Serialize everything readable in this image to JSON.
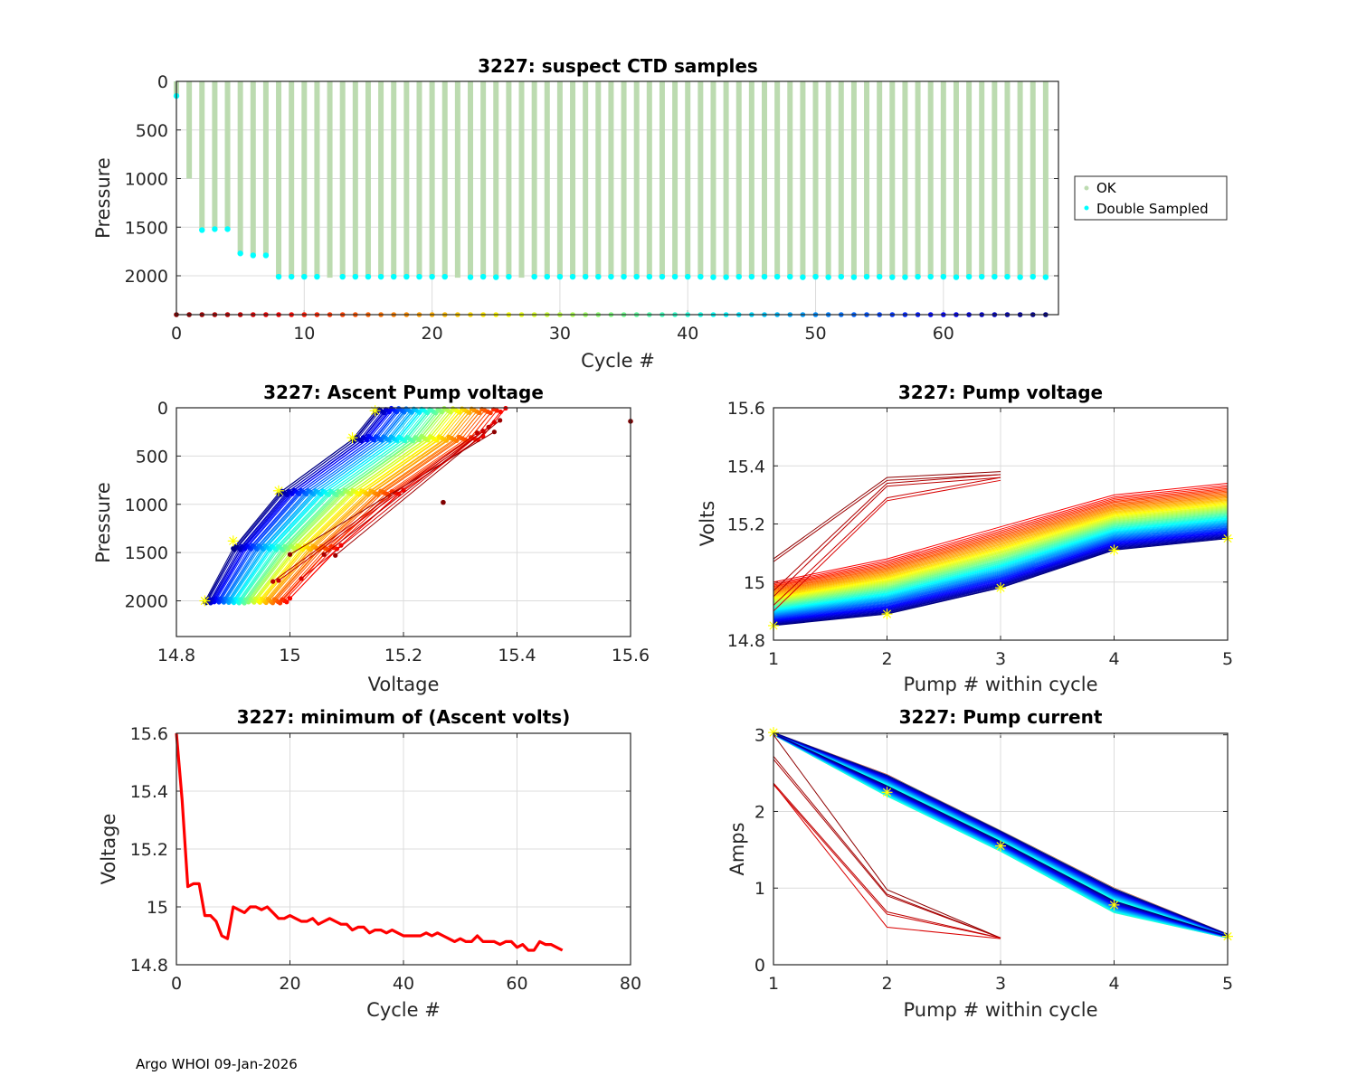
{
  "footer": "Argo WHOI 09-Jan-2026",
  "colors": {
    "ok_bar": "#bcdbb0",
    "double_sampled": "#00ffff",
    "min_volts_line": "#ff0000",
    "min_marker": "#ffff00"
  },
  "chart_data": [
    {
      "id": "suspect-ctd",
      "type": "bar",
      "title": "3227: suspect CTD samples",
      "xlabel": "Cycle #",
      "ylabel": "Pressure",
      "xlim": [
        0,
        69
      ],
      "ylim": [
        0,
        2400
      ],
      "y_reversed": true,
      "xticks": [
        "0",
        "10",
        "20",
        "30",
        "40",
        "50",
        "60"
      ],
      "yticks": [
        "0",
        "500",
        "1000",
        "1500",
        "2000"
      ],
      "grid": true,
      "legend": {
        "placement": "outside-right",
        "entries": [
          "OK",
          "Double Sampled"
        ]
      },
      "cycles": [
        0,
        1,
        2,
        3,
        4,
        5,
        6,
        7,
        8,
        9,
        10,
        11,
        12,
        13,
        14,
        15,
        16,
        17,
        18,
        19,
        20,
        21,
        22,
        23,
        24,
        25,
        26,
        27,
        28,
        29,
        30,
        31,
        32,
        33,
        34,
        35,
        36,
        37,
        38,
        39,
        40,
        41,
        42,
        43,
        44,
        45,
        46,
        47,
        48,
        49,
        50,
        51,
        52,
        53,
        54,
        55,
        56,
        57,
        58,
        59,
        60,
        61,
        62,
        63,
        64,
        65,
        66,
        67,
        68
      ],
      "max_pressure": [
        150,
        1000,
        1530,
        1520,
        1520,
        1770,
        1790,
        1790,
        2010,
        2010,
        2010,
        2010,
        2020,
        2010,
        2010,
        2010,
        2010,
        2010,
        2010,
        2010,
        2010,
        2010,
        2020,
        2015,
        2010,
        2015,
        2010,
        2020,
        2010,
        2010,
        2010,
        2010,
        2010,
        2010,
        2010,
        2010,
        2010,
        2010,
        2010,
        2010,
        2010,
        2010,
        2015,
        2015,
        2010,
        2010,
        2010,
        2010,
        2010,
        2015,
        2010,
        2015,
        2010,
        2015,
        2010,
        2010,
        2015,
        2015,
        2010,
        2010,
        2010,
        2015,
        2010,
        2010,
        2010,
        2010,
        2015,
        2010,
        2015
      ],
      "double_sampled_pressure": [
        150,
        null,
        1530,
        1520,
        1520,
        1770,
        1790,
        1790,
        2010,
        2010,
        2010,
        2010,
        null,
        2010,
        2010,
        2010,
        2010,
        2010,
        2010,
        2010,
        2010,
        2010,
        null,
        2015,
        2010,
        2015,
        2010,
        null,
        2010,
        2010,
        2010,
        2010,
        2010,
        2010,
        2010,
        2010,
        2010,
        2010,
        2010,
        2010,
        2010,
        2010,
        2015,
        2015,
        2010,
        2010,
        2010,
        2010,
        2010,
        2015,
        2010,
        2015,
        2010,
        2015,
        2010,
        2010,
        2015,
        2015,
        2010,
        2010,
        2010,
        2015,
        2010,
        2010,
        2010,
        2010,
        2015,
        2010,
        2015
      ]
    },
    {
      "id": "ascent-pump-voltage",
      "type": "line",
      "title": "3227: Ascent Pump voltage",
      "xlabel": "Voltage",
      "ylabel": "Pressure",
      "xlim": [
        14.8,
        15.6
      ],
      "ylim": [
        0,
        2370
      ],
      "y_reversed": true,
      "xticks": [
        "14.8",
        "15",
        "15.2",
        "15.4",
        "15.6"
      ],
      "yticks": [
        "0",
        "500",
        "1000",
        "1500",
        "2000"
      ],
      "grid": true,
      "colormap": "jet (by cycle)",
      "pump_pressures": [
        2000,
        1450,
        880,
        320,
        30
      ],
      "series_first_cycle": {
        "name": "cycle 0 outliers",
        "points": [
          [
            15.6,
            140
          ],
          [
            15.27,
            980
          ]
        ]
      },
      "voltage_at_pump_first": [
        15.0,
        15.09,
        15.2,
        15.34,
        15.38
      ],
      "voltage_at_pump_last": [
        14.85,
        14.9,
        14.98,
        15.11,
        15.15
      ],
      "lowest_voltage_markers": [
        [
          14.85,
          2000
        ],
        [
          14.9,
          1380
        ],
        [
          14.98,
          860
        ],
        [
          15.11,
          310
        ],
        [
          15.15,
          30
        ]
      ]
    },
    {
      "id": "pump-voltage",
      "type": "line",
      "title": "3227: Pump voltage",
      "xlabel": "Pump # within cycle",
      "ylabel": "Volts",
      "xlim": [
        1,
        5
      ],
      "ylim": [
        14.8,
        15.6
      ],
      "xticks": [
        "1",
        "2",
        "3",
        "4",
        "5"
      ],
      "yticks": [
        "14.8",
        "15",
        "15.2",
        "15.4",
        "15.6"
      ],
      "grid": true,
      "colormap": "jet (by cycle)",
      "early_cycles_3pump": [
        [
          15.08,
          15.36,
          15.38
        ],
        [
          15.07,
          15.35,
          15.37
        ],
        [
          14.97,
          15.34,
          15.37
        ],
        [
          14.95,
          15.33,
          15.36
        ],
        [
          14.92,
          15.29,
          15.36
        ],
        [
          14.9,
          15.28,
          15.35
        ]
      ],
      "first_5pump_cycle": [
        15.0,
        15.08,
        15.19,
        15.3,
        15.34
      ],
      "last_cycle": [
        14.85,
        14.89,
        14.98,
        15.11,
        15.15
      ],
      "min_markers": [
        14.85,
        14.89,
        14.98,
        15.11,
        15.15
      ]
    },
    {
      "id": "min-ascent-volts",
      "type": "line",
      "title": "3227: minimum of (Ascent volts)",
      "xlabel": "Cycle #",
      "ylabel": "Voltage",
      "xlim": [
        0,
        80
      ],
      "ylim": [
        14.8,
        15.6
      ],
      "xticks": [
        "0",
        "20",
        "40",
        "60",
        "80"
      ],
      "yticks": [
        "14.8",
        "15",
        "15.2",
        "15.4",
        "15.6"
      ],
      "grid": true,
      "x": [
        0,
        1,
        2,
        3,
        4,
        5,
        6,
        7,
        8,
        9,
        10,
        11,
        12,
        13,
        14,
        15,
        16,
        17,
        18,
        19,
        20,
        21,
        22,
        23,
        24,
        25,
        26,
        27,
        28,
        29,
        30,
        31,
        32,
        33,
        34,
        35,
        36,
        37,
        38,
        39,
        40,
        41,
        42,
        43,
        44,
        45,
        46,
        47,
        48,
        49,
        50,
        51,
        52,
        53,
        54,
        55,
        56,
        57,
        58,
        59,
        60,
        61,
        62,
        63,
        64,
        65,
        66,
        67,
        68
      ],
      "values": [
        15.6,
        15.37,
        15.07,
        15.08,
        15.08,
        14.97,
        14.97,
        14.95,
        14.9,
        14.89,
        15.0,
        14.99,
        14.98,
        15.0,
        15.0,
        14.99,
        15.0,
        14.98,
        14.96,
        14.96,
        14.97,
        14.96,
        14.95,
        14.95,
        14.96,
        14.94,
        14.95,
        14.96,
        14.95,
        14.94,
        14.94,
        14.92,
        14.93,
        14.93,
        14.91,
        14.92,
        14.92,
        14.91,
        14.92,
        14.91,
        14.9,
        14.9,
        14.9,
        14.9,
        14.91,
        14.9,
        14.91,
        14.9,
        14.89,
        14.88,
        14.89,
        14.88,
        14.88,
        14.9,
        14.88,
        14.88,
        14.88,
        14.87,
        14.88,
        14.88,
        14.86,
        14.87,
        14.85,
        14.85,
        14.88,
        14.87,
        14.87,
        14.86,
        14.85
      ]
    },
    {
      "id": "pump-current",
      "type": "line",
      "title": "3227: Pump current",
      "xlabel": "Pump # within cycle",
      "ylabel": "Amps",
      "xlim": [
        1,
        5
      ],
      "ylim": [
        0,
        3.02
      ],
      "xticks": [
        "1",
        "2",
        "3",
        "4",
        "5"
      ],
      "yticks": [
        "0",
        "1",
        "2",
        "3"
      ],
      "grid": true,
      "colormap": "jet (by cycle)",
      "early_cycles_3pump": [
        [
          3.0,
          0.98,
          0.35
        ],
        [
          2.72,
          0.92,
          0.35
        ],
        [
          2.68,
          0.9,
          0.35
        ],
        [
          2.37,
          0.69,
          0.35
        ],
        [
          2.35,
          0.66,
          0.35
        ],
        [
          2.36,
          0.49,
          0.34
        ]
      ],
      "main_band_upper": [
        3.03,
        2.48,
        1.75,
        1.0,
        0.4
      ],
      "main_band_lower": [
        3.0,
        2.2,
        1.48,
        0.68,
        0.35
      ],
      "markers": [
        3.03,
        2.25,
        1.55,
        0.78,
        0.37
      ]
    }
  ]
}
